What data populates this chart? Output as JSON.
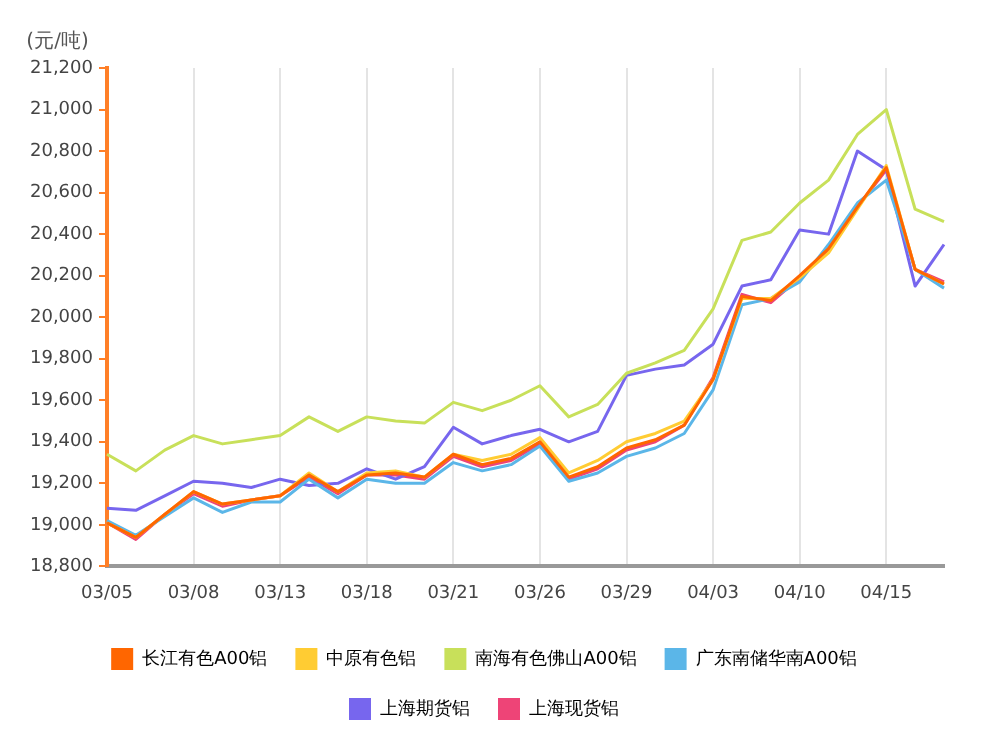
{
  "chart_data": {
    "type": "line",
    "ylabel": "(元/吨)",
    "categories": [
      "03/05",
      null,
      null,
      "03/08",
      null,
      null,
      "03/13",
      null,
      null,
      "03/18",
      null,
      null,
      "03/21",
      null,
      null,
      "03/26",
      null,
      null,
      "03/29",
      null,
      null,
      "04/03",
      null,
      null,
      "04/10",
      null,
      null,
      "04/15",
      null,
      null
    ],
    "series": [
      {
        "name": "长江有色A00铝",
        "color": "#ff6600",
        "values": [
          19010,
          18940,
          19050,
          19160,
          19100,
          19120,
          19140,
          19240,
          19160,
          19240,
          19250,
          19230,
          19340,
          19290,
          19320,
          19400,
          19230,
          19280,
          19370,
          19410,
          19480,
          19700,
          20100,
          20080,
          20200,
          20330,
          20530,
          20720,
          20230,
          20160
        ]
      },
      {
        "name": "中原有色铝",
        "color": "#ffcc33",
        "values": [
          19010,
          18940,
          19050,
          19160,
          19100,
          19120,
          19140,
          19250,
          19160,
          19250,
          19260,
          19230,
          19340,
          19310,
          19340,
          19420,
          19250,
          19310,
          19400,
          19440,
          19500,
          19700,
          20090,
          20090,
          20190,
          20310,
          20520,
          20730,
          20230,
          20160
        ]
      },
      {
        "name": "南海有色佛山A00铝",
        "color": "#c8e05a",
        "values": [
          19340,
          19260,
          19360,
          19430,
          19390,
          19410,
          19430,
          19520,
          19450,
          19520,
          19500,
          19490,
          19590,
          19550,
          19600,
          19670,
          19520,
          19580,
          19730,
          19780,
          19840,
          20040,
          20370,
          20410,
          20550,
          20660,
          20880,
          21000,
          20520,
          20460
        ]
      },
      {
        "name": "广东南储华南A00铝",
        "color": "#5bb6e8",
        "values": [
          19020,
          18950,
          19040,
          19130,
          19060,
          19110,
          19110,
          19220,
          19130,
          19220,
          19200,
          19200,
          19300,
          19260,
          19290,
          19380,
          19210,
          19250,
          19330,
          19370,
          19440,
          19650,
          20060,
          20090,
          20170,
          20350,
          20550,
          20660,
          20230,
          20140
        ]
      },
      {
        "name": "上海期货铝",
        "color": "#7766ee",
        "values": [
          19080,
          19070,
          19140,
          19210,
          19200,
          19180,
          19220,
          19190,
          19200,
          19270,
          19220,
          19280,
          19470,
          19390,
          19430,
          19460,
          19400,
          19450,
          19720,
          19750,
          19770,
          19870,
          20150,
          20180,
          20420,
          20400,
          20800,
          20710,
          20150,
          20350
        ]
      },
      {
        "name": "上海现货铝",
        "color": "#ee4477",
        "values": [
          19010,
          18930,
          19050,
          19150,
          19090,
          19120,
          19140,
          19230,
          19150,
          19240,
          19240,
          19220,
          19330,
          19280,
          19310,
          19390,
          19220,
          19270,
          19360,
          19400,
          19480,
          19710,
          20110,
          20070,
          20190,
          20320,
          20530,
          20710,
          20230,
          20170
        ]
      }
    ],
    "ylim": [
      18800,
      21200
    ],
    "yticks": [
      {
        "value": 18800,
        "label": "18,800"
      },
      {
        "value": 19000,
        "label": "19,000"
      },
      {
        "value": 19200,
        "label": "19,200"
      },
      {
        "value": 19400,
        "label": "19,400"
      },
      {
        "value": 19600,
        "label": "19,600"
      },
      {
        "value": 19800,
        "label": "19,800"
      },
      {
        "value": 20000,
        "label": "20,000"
      },
      {
        "value": 20200,
        "label": "20,200"
      },
      {
        "value": 20400,
        "label": "20,400"
      },
      {
        "value": 20600,
        "label": "20,600"
      },
      {
        "value": 20800,
        "label": "20,800"
      },
      {
        "value": 21000,
        "label": "21,000"
      },
      {
        "value": 21200,
        "label": "21,200"
      }
    ],
    "grid": "x",
    "legend": "bottom",
    "marker": "none",
    "line_style": "solid"
  }
}
